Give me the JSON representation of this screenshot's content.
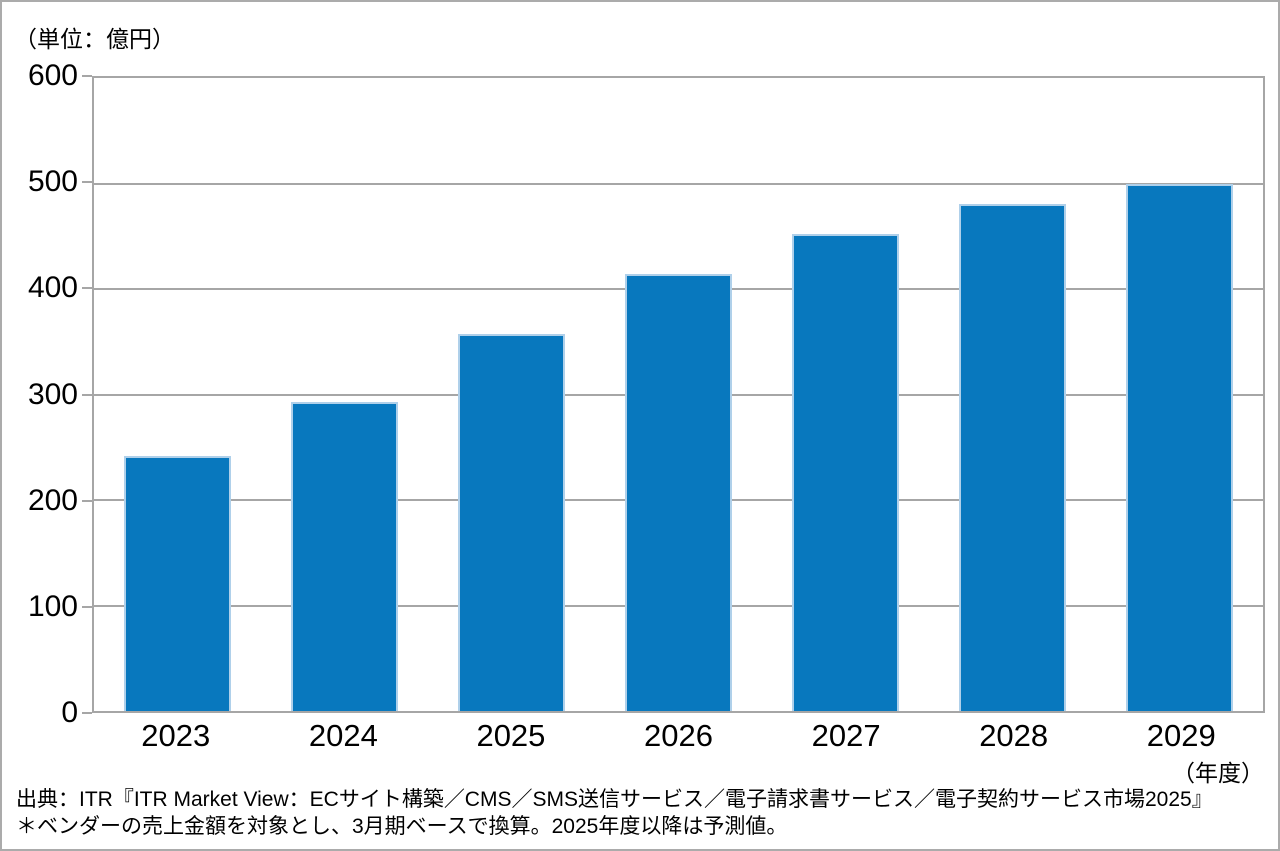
{
  "unit_label": "（単位：億円）",
  "x_axis_unit": "（年度）",
  "source": {
    "line1": "出典：ITR『ITR Market View：ECサイト構築／CMS／SMS送信サービス／電子請求書サービス／電子契約サービス市場2025』",
    "line2": "＊ベンダーの売上金額を対象とし、3月期ベースで換算。2025年度以降は予測値。"
  },
  "colors": {
    "bar": "#0878BE",
    "bar_border": "#AFD0EA",
    "gridline": "#A6A6A6",
    "outer_border": "#ABABAB"
  },
  "chart_data": {
    "type": "bar",
    "categories": [
      "2023",
      "2024",
      "2025",
      "2026",
      "2027",
      "2028",
      "2029"
    ],
    "values": [
      242,
      293,
      357,
      414,
      452,
      481,
      500
    ],
    "title": "",
    "xlabel": "（年度）",
    "ylabel": "（単位：億円）",
    "ylim": [
      0,
      600
    ],
    "ytick_step": 100,
    "grid": true,
    "legend": false,
    "bar_color": "#0878BE"
  }
}
